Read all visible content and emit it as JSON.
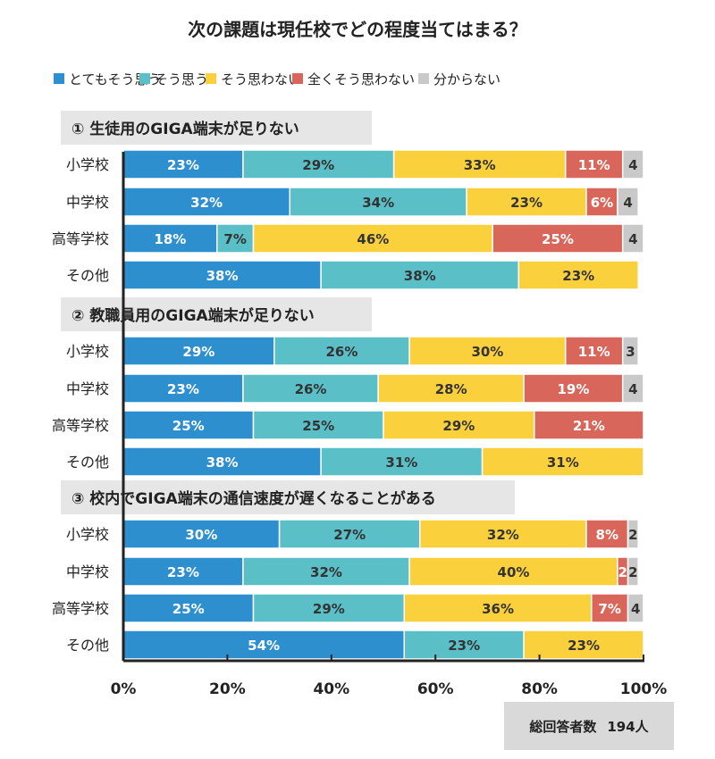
{
  "chart_data": {
    "type": "stacked-horizontal-bar",
    "title": "次の課題は現任校でどの程度当てはまる？",
    "legend": [
      {
        "label": "とてもそう思う",
        "color": "#2e8fcf"
      },
      {
        "label": "そう思う",
        "color": "#5bbfc7"
      },
      {
        "label": "そう思わない",
        "color": "#fbd03d"
      },
      {
        "label": "全くそう思わない",
        "color": "#d9665a"
      },
      {
        "label": "分からない",
        "color": "#c9c9c9"
      }
    ],
    "xlim": [
      0,
      100
    ],
    "x_ticks": [
      "0%",
      "20%",
      "40%",
      "60%",
      "80%",
      "100%"
    ],
    "sections": [
      {
        "title": "① 生徒用のGIGA端末が足りない",
        "rows": [
          {
            "category": "小学校",
            "values": [
              23,
              29,
              33,
              11,
              4
            ],
            "labels": [
              "23%",
              "29%",
              "33%",
              "11%",
              "4"
            ]
          },
          {
            "category": "中学校",
            "values": [
              32,
              34,
              23,
              6,
              4
            ],
            "labels": [
              "32%",
              "34%",
              "23%",
              "6%",
              "4"
            ]
          },
          {
            "category": "高等学校",
            "values": [
              18,
              7,
              46,
              25,
              4
            ],
            "labels": [
              "18%",
              "7%",
              "46%",
              "25%",
              "4"
            ]
          },
          {
            "category": "その他",
            "values": [
              38,
              38,
              23,
              0,
              0
            ],
            "labels": [
              "38%",
              "38%",
              "23%",
              "",
              ""
            ]
          }
        ]
      },
      {
        "title": "② 教職員用のGIGA端末が足りない",
        "rows": [
          {
            "category": "小学校",
            "values": [
              29,
              26,
              30,
              11,
              3
            ],
            "labels": [
              "29%",
              "26%",
              "30%",
              "11%",
              "3"
            ]
          },
          {
            "category": "中学校",
            "values": [
              23,
              26,
              28,
              19,
              4
            ],
            "labels": [
              "23%",
              "26%",
              "28%",
              "19%",
              "4"
            ]
          },
          {
            "category": "高等学校",
            "values": [
              25,
              25,
              29,
              21,
              0
            ],
            "labels": [
              "25%",
              "25%",
              "29%",
              "21%",
              ""
            ]
          },
          {
            "category": "その他",
            "values": [
              38,
              31,
              31,
              0,
              0
            ],
            "labels": [
              "38%",
              "31%",
              "31%",
              "",
              ""
            ]
          }
        ]
      },
      {
        "title": "③ 校内でGIGA端末の通信速度が遅くなることがある",
        "rows": [
          {
            "category": "小学校",
            "values": [
              30,
              27,
              32,
              8,
              2
            ],
            "labels": [
              "30%",
              "27%",
              "32%",
              "8%",
              "2"
            ]
          },
          {
            "category": "中学校",
            "values": [
              23,
              32,
              40,
              2,
              2
            ],
            "labels": [
              "23%",
              "32%",
              "40%",
              "2",
              "2"
            ]
          },
          {
            "category": "高等学校",
            "values": [
              25,
              29,
              36,
              7,
              4
            ],
            "labels": [
              "25%",
              "29%",
              "36%",
              "7%",
              "4"
            ]
          },
          {
            "category": "その他",
            "values": [
              54,
              23,
              23,
              0,
              0
            ],
            "labels": [
              "54%",
              "23%",
              "23%",
              "",
              ""
            ]
          }
        ]
      }
    ]
  },
  "footer": {
    "label": "総回答者数",
    "value": "194人"
  }
}
